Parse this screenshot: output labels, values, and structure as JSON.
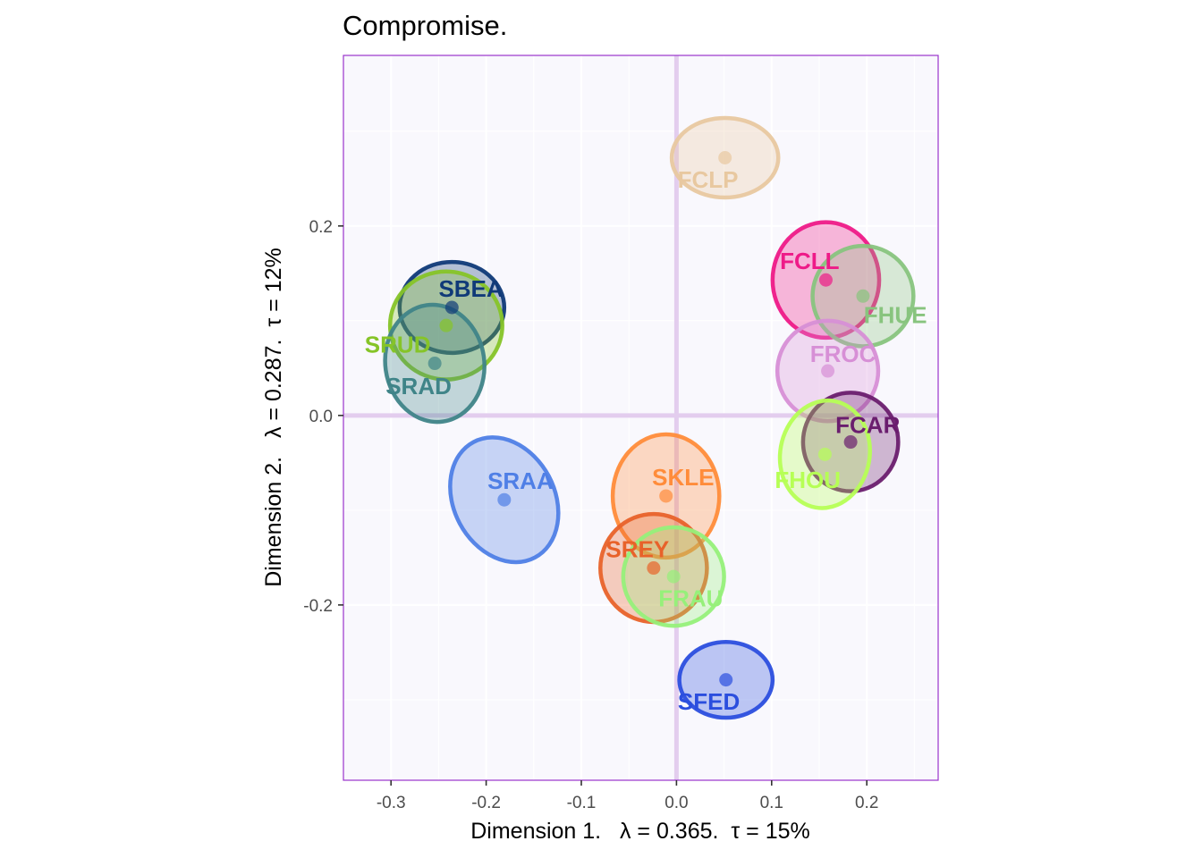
{
  "chart_data": {
    "type": "scatter",
    "title": "Compromise.",
    "xlabel": "Dimension 1.   λ = 0.365.  τ = 15%",
    "ylabel": "Dimension 2.   λ = 0.287.  τ = 12%",
    "xlim": [
      -0.35,
      0.275
    ],
    "ylim": [
      -0.385,
      0.38
    ],
    "xticks": [
      -0.3,
      -0.2,
      -0.1,
      0.0,
      0.1,
      0.2
    ],
    "xtick_labels": [
      "-0.3",
      "-0.2",
      "-0.1",
      "0.0",
      "0.1",
      "0.2"
    ],
    "yticks": [
      -0.2,
      0.0,
      0.2
    ],
    "ytick_labels": [
      "-0.2",
      "0.0",
      "0.2"
    ],
    "background": "#f9f8fd",
    "grid_color": "#ffffff",
    "border_color": "#9933cc",
    "zero_line_color": "#e3cdee",
    "points": [
      {
        "name": "FCLP",
        "x": 0.051,
        "y": 0.272,
        "color": "#e8c8a0",
        "rx": 0.056,
        "ry": 0.042,
        "angle": 0,
        "label_x": 0.033,
        "label_y": 0.249
      },
      {
        "name": "FCLL",
        "x": 0.157,
        "y": 0.143,
        "color": "#ee1a88",
        "rx": 0.056,
        "ry": 0.061,
        "angle": 0,
        "label_x": 0.14,
        "label_y": 0.163
      },
      {
        "name": "FHUE",
        "x": 0.196,
        "y": 0.126,
        "color": "#88c47e",
        "rx": 0.053,
        "ry": 0.053,
        "angle": 0,
        "label_x": 0.23,
        "label_y": 0.106
      },
      {
        "name": "FROC",
        "x": 0.159,
        "y": 0.047,
        "color": "#d78fd6",
        "rx": 0.053,
        "ry": 0.053,
        "angle": 0,
        "label_x": 0.175,
        "label_y": 0.065
      },
      {
        "name": "FCAR",
        "x": 0.183,
        "y": -0.028,
        "color": "#6a1d6e",
        "rx": 0.05,
        "ry": 0.052,
        "angle": 0,
        "label_x": 0.201,
        "label_y": -0.01
      },
      {
        "name": "FHOU",
        "x": 0.156,
        "y": -0.041,
        "color": "#b6ff55",
        "rx": 0.047,
        "ry": 0.057,
        "angle": 10,
        "label_x": 0.138,
        "label_y": -0.068
      },
      {
        "name": "SBEA",
        "x": -0.236,
        "y": 0.114,
        "color": "#103a78",
        "rx": 0.055,
        "ry": 0.048,
        "angle": 0,
        "label_x": -0.216,
        "label_y": 0.134
      },
      {
        "name": "SRUD",
        "x": -0.242,
        "y": 0.095,
        "color": "#86c428",
        "rx": 0.059,
        "ry": 0.057,
        "angle": 0,
        "label_x": -0.293,
        "label_y": 0.075
      },
      {
        "name": "SRAD",
        "x": -0.254,
        "y": 0.055,
        "color": "#3f8488",
        "rx": 0.052,
        "ry": 0.062,
        "angle": -8,
        "label_x": -0.271,
        "label_y": 0.031
      },
      {
        "name": "SRAA",
        "x": -0.181,
        "y": -0.089,
        "color": "#4f7fe6",
        "rx": 0.053,
        "ry": 0.069,
        "angle": -28,
        "label_x": -0.164,
        "label_y": -0.069
      },
      {
        "name": "SKLE",
        "x": -0.011,
        "y": -0.085,
        "color": "#ff8c3a",
        "rx": 0.056,
        "ry": 0.065,
        "angle": 0,
        "label_x": 0.007,
        "label_y": -0.065
      },
      {
        "name": "SREY",
        "x": -0.024,
        "y": -0.161,
        "color": "#e8622a",
        "rx": 0.056,
        "ry": 0.057,
        "angle": 0,
        "label_x": -0.041,
        "label_y": -0.141
      },
      {
        "name": "FRAU",
        "x": -0.003,
        "y": -0.17,
        "color": "#96f07a",
        "rx": 0.053,
        "ry": 0.052,
        "angle": 0,
        "label_x": 0.015,
        "label_y": -0.193
      },
      {
        "name": "SFED",
        "x": 0.052,
        "y": -0.279,
        "color": "#2b4ede",
        "rx": 0.049,
        "ry": 0.04,
        "angle": 0,
        "label_x": 0.034,
        "label_y": -0.302
      }
    ]
  }
}
